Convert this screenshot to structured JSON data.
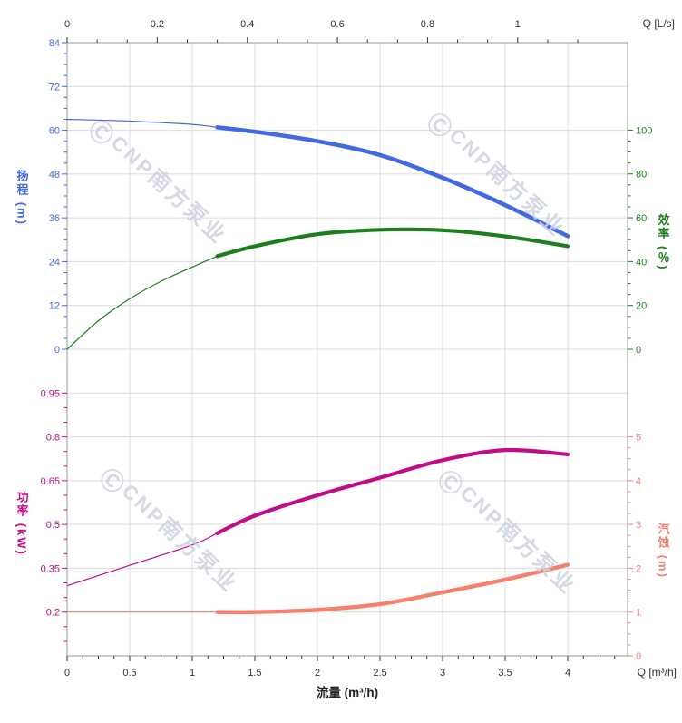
{
  "chart_data": {
    "type": "line",
    "title": "",
    "grid": true,
    "axes": {
      "top": {
        "end_label": "Q [L/s]",
        "unit": "L/s",
        "major_ticks": [
          0,
          0.2,
          0.4,
          0.6,
          0.8,
          1
        ],
        "major_labels": [
          "0",
          "0.2",
          "0.4",
          "0.6",
          "0.8",
          "1"
        ],
        "range": [
          0,
          1.244
        ],
        "color": "#333333"
      },
      "bottom": {
        "end_label": "Q [m³/h]",
        "xlabel": "流量 (m³/h)",
        "unit": "m³/h",
        "major_ticks": [
          0,
          0.5,
          1,
          1.5,
          2,
          2.5,
          3,
          3.5,
          4
        ],
        "major_labels": [
          "0",
          "0.5",
          "1",
          "1.5",
          "2",
          "2.5",
          "3",
          "3.5",
          "4"
        ],
        "range": [
          0,
          4.478
        ],
        "color": "#333333"
      },
      "head": {
        "title": "扬程 (m)",
        "color": "#4169E1",
        "major_ticks": [
          0,
          12,
          24,
          36,
          48,
          60,
          72,
          84
        ],
        "major_labels": [
          "0",
          "12",
          "24",
          "36",
          "48",
          "60",
          "72",
          "84"
        ],
        "minor_step": 3,
        "range": [
          0,
          84
        ]
      },
      "eff": {
        "title": "效率 (％)",
        "color": "#1E7E1E",
        "major_ticks": [
          0,
          20,
          40,
          60,
          80,
          100
        ],
        "major_labels": [
          "0",
          "20",
          "40",
          "60",
          "80",
          "100"
        ],
        "minor_step": 5,
        "range": [
          0,
          100
        ]
      },
      "pow": {
        "title": "功率 (kW)",
        "color": "#C00D87",
        "major_ticks": [
          0.2,
          0.35,
          0.5,
          0.65,
          0.8,
          0.95
        ],
        "major_labels": [
          "0.2",
          "0.35",
          "0.5",
          "0.65",
          "0.8",
          "0.95"
        ],
        "minor_step": 0.05,
        "range": [
          0.2,
          0.95
        ]
      },
      "npsh": {
        "title": "汽蚀 (m)",
        "color": "#F5806F",
        "major_ticks": [
          0,
          1,
          2,
          3,
          4,
          5
        ],
        "major_labels": [
          "0",
          "1",
          "2",
          "3",
          "4",
          "5"
        ],
        "minor_step": 0.25,
        "range": [
          0,
          5
        ]
      }
    },
    "series": [
      {
        "name": "head-curve",
        "axis": "head",
        "color": "#4169E1",
        "thin_until": 1.2,
        "x": [
          0,
          0.5,
          1,
          1.2,
          1.5,
          2,
          2.5,
          3,
          3.5,
          4
        ],
        "y": [
          63,
          62.5,
          61.6,
          60.8,
          59.6,
          57,
          53.2,
          47,
          39.5,
          31
        ]
      },
      {
        "name": "efficiency-curve",
        "axis": "eff",
        "color": "#1E7E1E",
        "thin_until": 1.2,
        "x": [
          0,
          0.25,
          0.5,
          0.75,
          1,
          1.2,
          1.5,
          2,
          2.5,
          3,
          3.5,
          4
        ],
        "y": [
          0,
          13,
          23,
          31,
          37.5,
          42.5,
          47,
          52.5,
          54.5,
          54.3,
          51.5,
          47
        ]
      },
      {
        "name": "power-curve",
        "axis": "pow",
        "color": "#C00D87",
        "thin_until": 1.2,
        "x": [
          0,
          0.5,
          1,
          1.2,
          1.5,
          2,
          2.5,
          3,
          3.5,
          4
        ],
        "y": [
          0.29,
          0.36,
          0.43,
          0.47,
          0.53,
          0.6,
          0.66,
          0.72,
          0.755,
          0.74
        ]
      },
      {
        "name": "npsh-curve",
        "axis": "npsh",
        "color": "#F5806F",
        "thin_until": 1.2,
        "x": [
          0,
          0.5,
          1,
          1.2,
          1.5,
          2,
          2.5,
          3,
          3.5,
          4
        ],
        "y": [
          1.0,
          1.0,
          1.0,
          1.0,
          1.0,
          1.05,
          1.18,
          1.45,
          1.74,
          2.08
        ]
      }
    ],
    "colors": {
      "grid": "#DCDCDC",
      "border": "#A6A6A6",
      "axis_text": "#333333"
    }
  },
  "watermark": {
    "mark": "Ⓒ",
    "cnp": "CNP",
    "text": "南方泵业"
  }
}
